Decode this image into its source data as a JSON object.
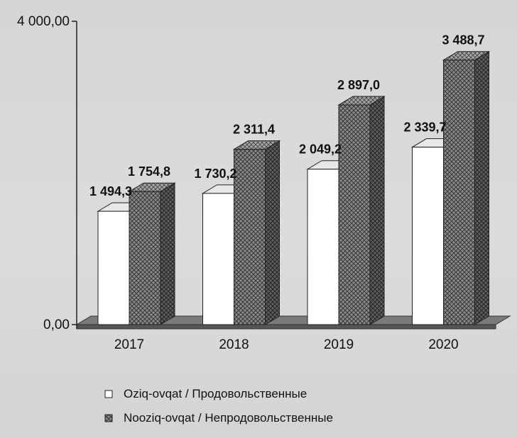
{
  "chart_data": {
    "type": "bar",
    "style": "3d-clustered",
    "categories": [
      "2017",
      "2018",
      "2019",
      "2020"
    ],
    "series": [
      {
        "name": "Oziq-ovqat / Продовольственные",
        "values": [
          1494.3,
          1730.2,
          2049.2,
          2339.7
        ],
        "value_labels": [
          "1 494,3",
          "1 730,2",
          "2 049,2",
          "2 339,7"
        ],
        "color": "#ffffff",
        "pattern": "plain"
      },
      {
        "name": "Nooziq-ovqat / Непродовольственные",
        "values": [
          1754.8,
          2311.4,
          2897.0,
          3488.7
        ],
        "value_labels": [
          "1 754,8",
          "2 311,4",
          "2 897,0",
          "3 488,7"
        ],
        "color": "#6e6e6e",
        "pattern": "crosshatch"
      }
    ],
    "y_ticks": [
      {
        "value": 0,
        "label": "0,00"
      },
      {
        "value": 4000,
        "label": "4 000,00"
      }
    ],
    "ylim": [
      0,
      4000
    ],
    "legend_position": "bottom",
    "grid": false
  }
}
